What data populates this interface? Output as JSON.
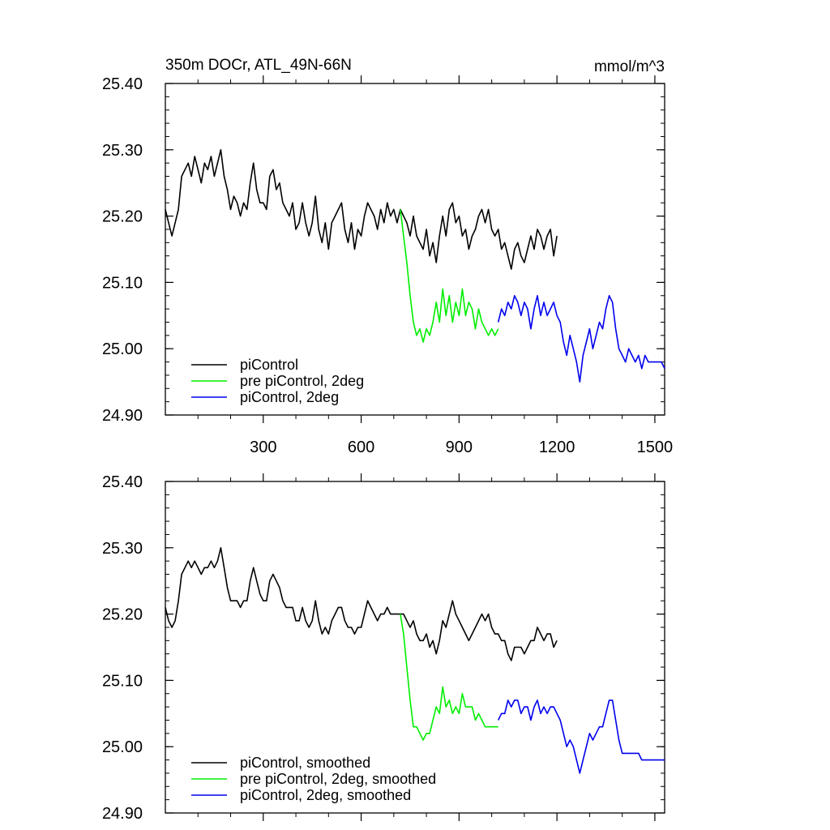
{
  "header": {
    "title": "350m DOCr, ATL_49N-66N",
    "units": "mmol/m^3"
  },
  "chart_data": [
    {
      "type": "line",
      "title": "350m DOCr, ATL_49N-66N",
      "units_label": "mmol/m^3",
      "xlim": [
        0,
        1530
      ],
      "ylim": [
        24.9,
        25.4
      ],
      "x_ticks": [
        300,
        600,
        900,
        1200,
        1500
      ],
      "x_tick_labels": [
        "300",
        "600",
        "900",
        "1200",
        "1500"
      ],
      "y_ticks": [
        24.9,
        25.0,
        25.1,
        25.2,
        25.3,
        25.4
      ],
      "y_tick_labels": [
        "24.90",
        "25.00",
        "25.10",
        "25.20",
        "25.30",
        "25.40"
      ],
      "legend_position": "bottom-left",
      "series": [
        {
          "name": "piControl",
          "color": "#000000",
          "x": [
            0,
            10,
            20,
            30,
            40,
            50,
            60,
            70,
            80,
            90,
            100,
            110,
            120,
            130,
            140,
            150,
            160,
            170,
            180,
            190,
            200,
            210,
            220,
            230,
            240,
            250,
            260,
            270,
            280,
            290,
            300,
            310,
            320,
            330,
            340,
            350,
            360,
            370,
            380,
            390,
            400,
            410,
            420,
            430,
            440,
            450,
            460,
            470,
            480,
            490,
            500,
            510,
            520,
            530,
            540,
            550,
            560,
            570,
            580,
            590,
            600,
            610,
            620,
            630,
            640,
            650,
            660,
            670,
            680,
            690,
            700,
            710,
            720,
            730,
            740,
            750,
            760,
            770,
            780,
            790,
            800,
            810,
            820,
            830,
            840,
            850,
            860,
            870,
            880,
            890,
            900,
            910,
            920,
            930,
            940,
            950,
            960,
            970,
            980,
            990,
            1000,
            1010,
            1020,
            1030,
            1040,
            1050,
            1060,
            1070,
            1080,
            1090,
            1100,
            1110,
            1120,
            1130,
            1140,
            1150,
            1160,
            1170,
            1180,
            1190,
            1200
          ],
          "y": [
            25.21,
            25.19,
            25.17,
            25.19,
            25.21,
            25.26,
            25.27,
            25.28,
            25.26,
            25.29,
            25.27,
            25.25,
            25.28,
            25.27,
            25.29,
            25.26,
            25.28,
            25.3,
            25.26,
            25.24,
            25.21,
            25.23,
            25.22,
            25.2,
            25.22,
            25.21,
            25.25,
            25.28,
            25.24,
            25.22,
            25.22,
            25.21,
            25.26,
            25.27,
            25.24,
            25.25,
            25.22,
            25.21,
            25.2,
            25.22,
            25.18,
            25.19,
            25.22,
            25.19,
            25.17,
            25.19,
            25.23,
            25.18,
            25.16,
            25.19,
            25.15,
            25.19,
            25.2,
            25.21,
            25.22,
            25.18,
            25.16,
            25.19,
            25.15,
            25.18,
            25.17,
            25.2,
            25.22,
            25.21,
            25.2,
            25.18,
            25.21,
            25.19,
            25.22,
            25.2,
            25.21,
            25.19,
            25.21,
            25.2,
            25.19,
            25.17,
            25.2,
            25.17,
            25.16,
            25.15,
            25.18,
            25.14,
            25.16,
            25.13,
            25.17,
            25.2,
            25.17,
            25.21,
            25.22,
            25.19,
            25.2,
            25.17,
            25.18,
            25.15,
            25.17,
            25.18,
            25.2,
            25.21,
            25.19,
            25.21,
            25.18,
            25.17,
            25.18,
            25.15,
            25.16,
            25.14,
            25.12,
            25.15,
            25.16,
            25.14,
            25.13,
            25.15,
            25.17,
            25.15,
            25.18,
            25.17,
            25.15,
            25.17,
            25.18,
            25.14,
            25.17
          ]
        },
        {
          "name": "pre piControl, 2deg",
          "color": "#00ee00",
          "x": [
            720,
            730,
            740,
            750,
            760,
            770,
            780,
            790,
            800,
            810,
            820,
            830,
            840,
            850,
            860,
            870,
            880,
            890,
            900,
            910,
            920,
            930,
            940,
            950,
            960,
            970,
            980,
            990,
            1000,
            1010,
            1020
          ],
          "y": [
            25.21,
            25.17,
            25.13,
            25.08,
            25.04,
            25.02,
            25.03,
            25.01,
            25.03,
            25.02,
            25.04,
            25.07,
            25.04,
            25.09,
            25.05,
            25.08,
            25.04,
            25.07,
            25.05,
            25.09,
            25.05,
            25.07,
            25.06,
            25.03,
            25.06,
            25.04,
            25.03,
            25.02,
            25.03,
            25.02,
            25.03
          ]
        },
        {
          "name": "piControl, 2deg",
          "color": "#0000ee",
          "x": [
            1020,
            1030,
            1040,
            1050,
            1060,
            1070,
            1080,
            1090,
            1100,
            1110,
            1120,
            1130,
            1140,
            1150,
            1160,
            1170,
            1180,
            1190,
            1200,
            1210,
            1220,
            1230,
            1240,
            1250,
            1260,
            1270,
            1280,
            1290,
            1300,
            1310,
            1320,
            1330,
            1340,
            1350,
            1360,
            1370,
            1380,
            1390,
            1400,
            1410,
            1420,
            1430,
            1440,
            1450,
            1460,
            1470,
            1480,
            1490,
            1500,
            1510,
            1520,
            1530
          ],
          "y": [
            25.04,
            25.06,
            25.05,
            25.07,
            25.06,
            25.08,
            25.07,
            25.05,
            25.07,
            25.06,
            25.03,
            25.06,
            25.08,
            25.05,
            25.07,
            25.05,
            25.06,
            25.07,
            25.05,
            25.04,
            25.01,
            24.99,
            25.02,
            25.0,
            24.98,
            24.95,
            24.99,
            25.01,
            25.03,
            25.0,
            25.02,
            25.04,
            25.03,
            25.06,
            25.08,
            25.07,
            25.03,
            25.0,
            24.99,
            24.98,
            25.0,
            24.99,
            24.98,
            24.99,
            24.97,
            24.99,
            24.98,
            24.98,
            24.98,
            24.98,
            24.98,
            24.97
          ]
        }
      ]
    },
    {
      "type": "line",
      "xlim": [
        0,
        1530
      ],
      "ylim": [
        24.9,
        25.4
      ],
      "x_ticks": [
        300,
        600,
        900,
        1200,
        1500
      ],
      "y_ticks": [
        24.9,
        25.0,
        25.1,
        25.2,
        25.3,
        25.4
      ],
      "y_tick_labels": [
        "24.90",
        "25.00",
        "25.10",
        "25.20",
        "25.30",
        "25.40"
      ],
      "legend_position": "bottom-left",
      "series": [
        {
          "name": "piControl, smoothed",
          "color": "#000000",
          "x": [
            0,
            10,
            20,
            30,
            40,
            50,
            60,
            70,
            80,
            90,
            100,
            110,
            120,
            130,
            140,
            150,
            160,
            170,
            180,
            190,
            200,
            210,
            220,
            230,
            240,
            250,
            260,
            270,
            280,
            290,
            300,
            310,
            320,
            330,
            340,
            350,
            360,
            370,
            380,
            390,
            400,
            410,
            420,
            430,
            440,
            450,
            460,
            470,
            480,
            490,
            500,
            510,
            520,
            530,
            540,
            550,
            560,
            570,
            580,
            590,
            600,
            610,
            620,
            630,
            640,
            650,
            660,
            670,
            680,
            690,
            700,
            710,
            720,
            730,
            740,
            750,
            760,
            770,
            780,
            790,
            800,
            810,
            820,
            830,
            840,
            850,
            860,
            870,
            880,
            890,
            900,
            910,
            920,
            930,
            940,
            950,
            960,
            970,
            980,
            990,
            1000,
            1010,
            1020,
            1030,
            1040,
            1050,
            1060,
            1070,
            1080,
            1090,
            1100,
            1110,
            1120,
            1130,
            1140,
            1150,
            1160,
            1170,
            1180,
            1190,
            1200
          ],
          "y": [
            25.21,
            25.19,
            25.18,
            25.19,
            25.22,
            25.26,
            25.27,
            25.28,
            25.27,
            25.28,
            25.27,
            25.26,
            25.27,
            25.27,
            25.28,
            25.27,
            25.28,
            25.3,
            25.27,
            25.24,
            25.22,
            25.22,
            25.22,
            25.21,
            25.22,
            25.22,
            25.25,
            25.27,
            25.25,
            25.23,
            25.22,
            25.22,
            25.25,
            25.26,
            25.25,
            25.24,
            25.22,
            25.21,
            25.21,
            25.21,
            25.19,
            25.19,
            25.21,
            25.19,
            25.18,
            25.19,
            25.22,
            25.19,
            25.17,
            25.18,
            25.17,
            25.19,
            25.2,
            25.21,
            25.21,
            25.19,
            25.18,
            25.18,
            25.17,
            25.18,
            25.18,
            25.2,
            25.22,
            25.21,
            25.2,
            25.19,
            25.2,
            25.2,
            25.21,
            25.2,
            25.2,
            25.2,
            25.2,
            25.2,
            25.19,
            25.18,
            25.19,
            25.17,
            25.16,
            25.16,
            25.17,
            25.15,
            25.16,
            25.14,
            25.16,
            25.19,
            25.18,
            25.2,
            25.22,
            25.2,
            25.19,
            25.18,
            25.17,
            25.16,
            25.17,
            25.18,
            25.19,
            25.2,
            25.19,
            25.2,
            25.18,
            25.17,
            25.17,
            25.16,
            25.16,
            25.14,
            25.13,
            25.15,
            25.15,
            25.15,
            25.14,
            25.15,
            25.16,
            25.16,
            25.18,
            25.17,
            25.16,
            25.17,
            25.17,
            25.15,
            25.16
          ]
        },
        {
          "name": "pre piControl, 2deg, smoothed",
          "color": "#00ee00",
          "x": [
            720,
            730,
            740,
            750,
            760,
            770,
            780,
            790,
            800,
            810,
            820,
            830,
            840,
            850,
            860,
            870,
            880,
            890,
            900,
            910,
            920,
            930,
            940,
            950,
            960,
            970,
            980,
            990,
            1000,
            1010,
            1020
          ],
          "y": [
            25.2,
            25.17,
            25.12,
            25.07,
            25.03,
            25.03,
            25.02,
            25.01,
            25.02,
            25.02,
            25.04,
            25.06,
            25.05,
            25.09,
            25.06,
            25.07,
            25.05,
            25.06,
            25.05,
            25.08,
            25.06,
            25.06,
            25.06,
            25.04,
            25.05,
            25.04,
            25.03,
            25.03,
            25.03,
            25.03,
            25.03
          ]
        },
        {
          "name": "piControl, 2deg, smoothed",
          "color": "#0000ee",
          "x": [
            1020,
            1030,
            1040,
            1050,
            1060,
            1070,
            1080,
            1090,
            1100,
            1110,
            1120,
            1130,
            1140,
            1150,
            1160,
            1170,
            1180,
            1190,
            1200,
            1210,
            1220,
            1230,
            1240,
            1250,
            1260,
            1270,
            1280,
            1290,
            1300,
            1310,
            1320,
            1330,
            1340,
            1350,
            1360,
            1370,
            1380,
            1390,
            1400,
            1410,
            1420,
            1430,
            1440,
            1450,
            1460,
            1470,
            1480,
            1490,
            1500,
            1510,
            1520,
            1530
          ],
          "y": [
            25.04,
            25.05,
            25.05,
            25.07,
            25.06,
            25.07,
            25.07,
            25.05,
            25.06,
            25.06,
            25.04,
            25.06,
            25.07,
            25.05,
            25.06,
            25.05,
            25.06,
            25.06,
            25.05,
            25.04,
            25.02,
            25.0,
            25.01,
            25.0,
            24.98,
            24.96,
            24.98,
            25.0,
            25.02,
            25.01,
            25.02,
            25.03,
            25.03,
            25.05,
            25.07,
            25.07,
            25.04,
            25.01,
            24.99,
            24.99,
            24.99,
            24.99,
            24.99,
            24.99,
            24.98,
            24.98,
            24.98,
            24.98,
            24.98,
            24.98,
            24.98,
            24.98
          ]
        }
      ]
    }
  ]
}
